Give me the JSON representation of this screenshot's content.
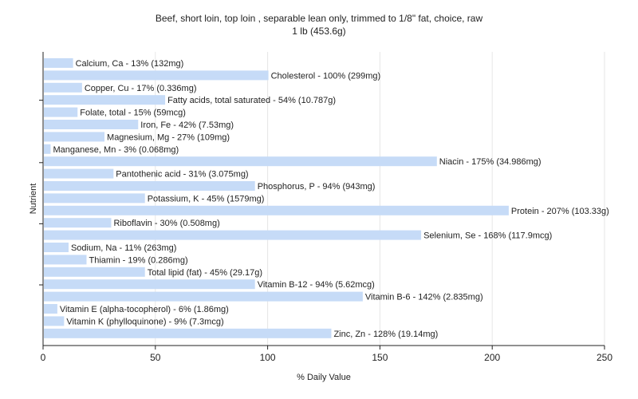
{
  "chart_data": {
    "type": "bar",
    "orientation": "horizontal",
    "title": "Beef, short loin, top loin , separable lean only, trimmed to 1/8\" fat, choice, raw",
    "subtitle": "1 lb (453.6g)",
    "xlabel": "% Daily Value",
    "ylabel": "Nutrient",
    "xlim": [
      0,
      250
    ],
    "xticks": [
      0,
      50,
      100,
      150,
      200,
      250
    ],
    "grid": true,
    "bar_color": "#c6dbf7",
    "categories": [
      "Calcium, Ca",
      "Cholesterol",
      "Copper, Cu",
      "Fatty acids, total saturated",
      "Folate, total",
      "Iron, Fe",
      "Magnesium, Mg",
      "Manganese, Mn",
      "Niacin",
      "Pantothenic acid",
      "Phosphorus, P",
      "Potassium, K",
      "Protein",
      "Riboflavin",
      "Selenium, Se",
      "Sodium, Na",
      "Thiamin",
      "Total lipid (fat)",
      "Vitamin B-12",
      "Vitamin B-6",
      "Vitamin E (alpha-tocopherol)",
      "Vitamin K (phylloquinone)",
      "Zinc, Zn"
    ],
    "values": [
      13,
      100,
      17,
      54,
      15,
      42,
      27,
      3,
      175,
      31,
      94,
      45,
      207,
      30,
      168,
      11,
      19,
      45,
      94,
      142,
      6,
      9,
      128
    ],
    "labels": [
      "Calcium, Ca - 13% (132mg)",
      "Cholesterol - 100% (299mg)",
      "Copper, Cu - 17% (0.336mg)",
      "Fatty acids, total saturated - 54% (10.787g)",
      "Folate, total - 15% (59mcg)",
      "Iron, Fe - 42% (7.53mg)",
      "Magnesium, Mg - 27% (109mg)",
      "Manganese, Mn - 3% (0.068mg)",
      "Niacin - 175% (34.986mg)",
      "Pantothenic acid - 31% (3.075mg)",
      "Phosphorus, P - 94% (943mg)",
      "Potassium, K - 45% (1579mg)",
      "Protein - 207% (103.33g)",
      "Riboflavin - 30% (0.508mg)",
      "Selenium, Se - 168% (117.9mcg)",
      "Sodium, Na - 11% (263mg)",
      "Thiamin - 19% (0.286mg)",
      "Total lipid (fat) - 45% (29.17g)",
      "Vitamin B-12 - 94% (5.62mcg)",
      "Vitamin B-6 - 142% (2.835mg)",
      "Vitamin E (alpha-tocopherol) - 6% (1.86mg)",
      "Vitamin K (phylloquinone) - 9% (7.3mcg)",
      "Zinc, Zn - 128% (19.14mg)"
    ]
  }
}
